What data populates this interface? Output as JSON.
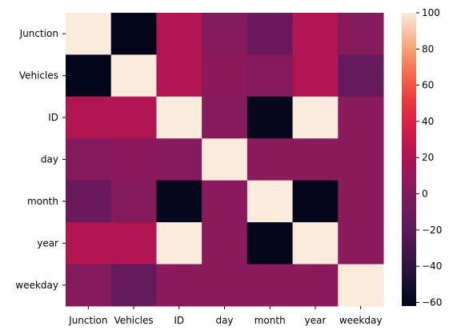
{
  "chart_data": {
    "type": "heatmap",
    "title": "",
    "xlabel": "",
    "ylabel": "",
    "rows": [
      "Junction",
      "Vehicles",
      "ID",
      "day",
      "month",
      "year",
      "weekday"
    ],
    "columns": [
      "Junction",
      "Vehicles",
      "ID",
      "day",
      "month",
      "year",
      "weekday"
    ],
    "values": [
      [
        100,
        -62,
        22,
        3,
        -12,
        22,
        3
      ],
      [
        -62,
        100,
        22,
        6,
        3,
        22,
        -15
      ],
      [
        22,
        22,
        100,
        3,
        -60,
        100,
        5
      ],
      [
        3,
        6,
        3,
        100,
        5,
        5,
        5
      ],
      [
        -12,
        3,
        -60,
        5,
        100,
        -61,
        5
      ],
      [
        22,
        22,
        100,
        5,
        -61,
        100,
        5
      ],
      [
        3,
        -15,
        5,
        5,
        5,
        5,
        100
      ]
    ],
    "colorbar": {
      "vmin": -62,
      "vmax": 100,
      "ticks": [
        "100",
        "80",
        "60",
        "40",
        "20",
        "0",
        "−20",
        "−40",
        "−60"
      ],
      "tick_values": [
        100,
        80,
        60,
        40,
        20,
        0,
        -20,
        -40,
        -60
      ]
    },
    "colormap": "rocket",
    "grid": false
  }
}
